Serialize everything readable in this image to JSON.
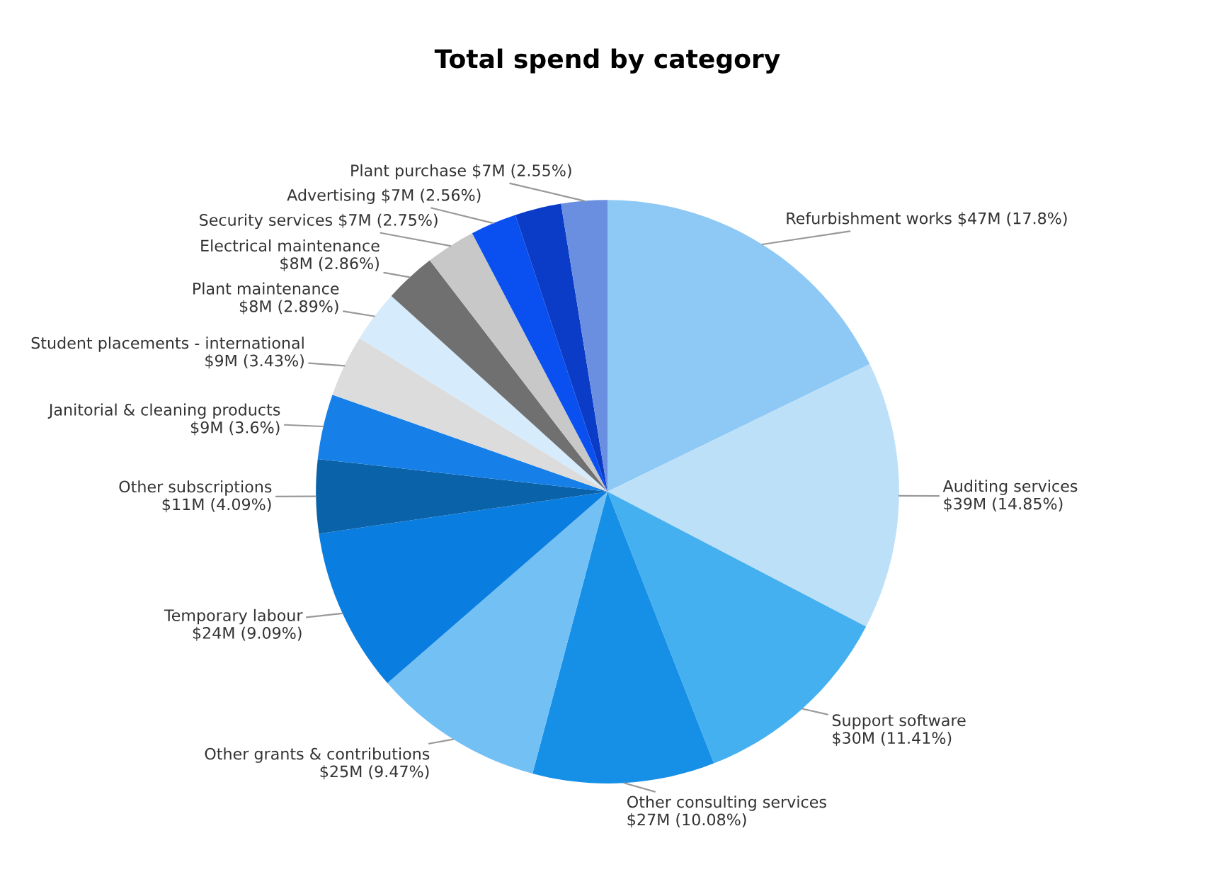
{
  "chart_data": {
    "type": "pie",
    "title": "Total spend by category",
    "categories": [
      "Refurbishment works",
      "Auditing services",
      "Support software",
      "Other consulting services",
      "Other grants & contributions",
      "Temporary labour",
      "Other subscriptions",
      "Janitorial & cleaning products",
      "Student placements - international",
      "Plant maintenance",
      "Electrical maintenance",
      "Security services",
      "Advertising",
      null,
      "Plant purchase"
    ],
    "values": [
      17.8,
      14.85,
      11.41,
      10.08,
      9.47,
      9.09,
      4.09,
      3.6,
      3.43,
      2.89,
      2.86,
      2.75,
      2.56,
      2.57,
      2.55
    ],
    "value_labels": [
      "$47M (17.8%)",
      "$39M (14.85%)",
      "$30M (11.41%)",
      "$27M (10.08%)",
      "$25M (9.47%)",
      "$24M (9.09%)",
      "$11M (4.09%)",
      "$9M (3.6%)",
      "$9M (3.43%)",
      "$8M (2.89%)",
      "$8M (2.86%)",
      "$7M (2.75%)",
      "$7M (2.56%)",
      null,
      "$7M (2.55%)"
    ],
    "colors": [
      "#8ec9f5",
      "#bde0f9",
      "#45b0f0",
      "#168fe6",
      "#73c0f4",
      "#0a7ee0",
      "#0a62a8",
      "#1680e8",
      "#dcdcdc",
      "#d6ebfb",
      "#707070",
      "#c8c8c8",
      "#0a4ff0",
      "#0a3cc8",
      "#6b8fe0"
    ],
    "legend": false
  }
}
